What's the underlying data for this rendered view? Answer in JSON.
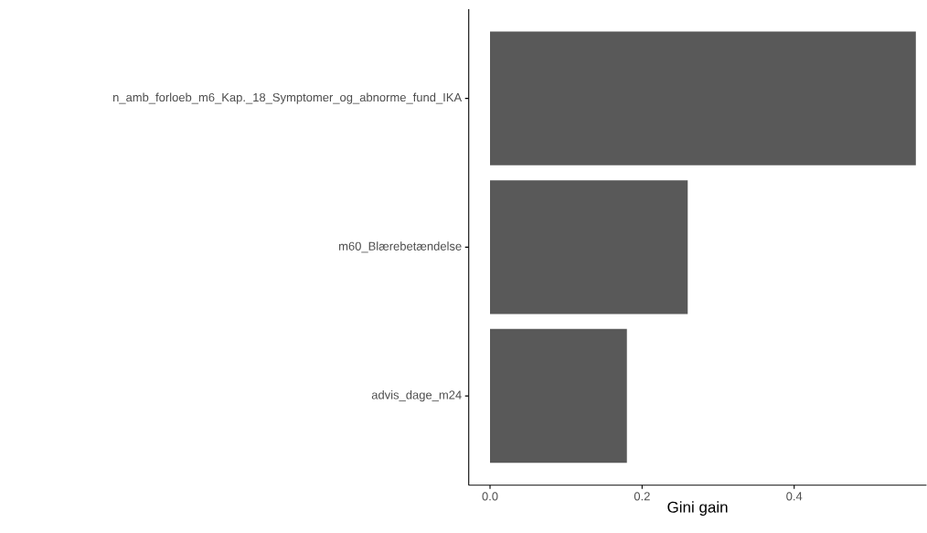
{
  "chart_data": {
    "type": "bar",
    "orientation": "horizontal",
    "xlabel": "Gini gain",
    "categories": [
      "n_amb_forloeb_m6_Kap._18_Symptomer_og_abnorme_fund_IKA",
      "m60_Blærebetændelse",
      "advis_dage_m24"
    ],
    "values": [
      0.56,
      0.26,
      0.18
    ],
    "color": "#595959",
    "xlim": [
      -0.028,
      0.574
    ],
    "xticks": [
      {
        "value": 0,
        "label": "0.0"
      },
      {
        "value": 0.2,
        "label": "0.2"
      },
      {
        "value": 0.4,
        "label": "0.4"
      }
    ]
  }
}
